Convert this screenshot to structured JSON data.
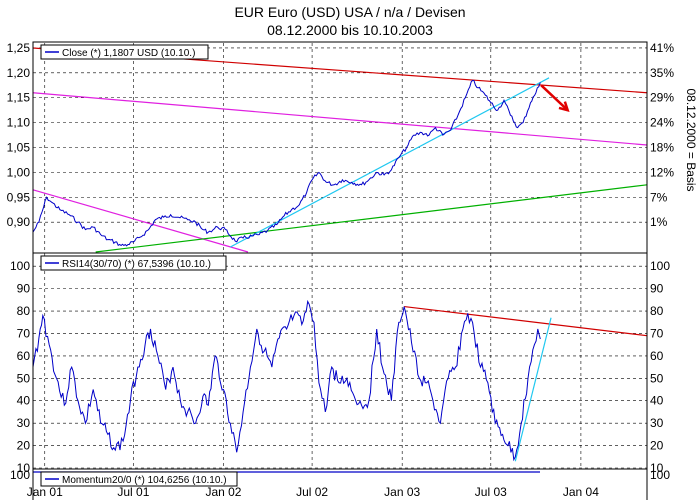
{
  "header": {
    "title_line1": "EUR Euro (USD) USA / n/a / Devisen",
    "title_line2": "08.12.2000 bis 10.10.2003"
  },
  "colors": {
    "price": "#0000c8",
    "trend_red": "#d00000",
    "channel_magenta": "#e020e0",
    "trend_cyan": "#20c8f0",
    "trend_green": "#00b000",
    "arrow": "#e00000",
    "grid": "#000000"
  },
  "chart_data": [
    {
      "type": "line",
      "panel": "price",
      "legend": "Close (*) 1,1807 USD (10.10.)",
      "right_axis_label": "08.12.2000 = Basis",
      "y_ticks": [
        "1,25",
        "1,20",
        "1,15",
        "1,10",
        "1,05",
        "1,00",
        "0,95",
        "0,90"
      ],
      "y_tick_values": [
        1.25,
        1.2,
        1.15,
        1.1,
        1.05,
        1.0,
        0.95,
        0.9
      ],
      "right_ticks": [
        "41%",
        "35%",
        "29%",
        "24%",
        "18%",
        "12%",
        "7%",
        "1%"
      ],
      "ylim": [
        0.84,
        1.26
      ],
      "x_ticks": [
        "Jan 01",
        "Jul 01",
        "Jan 02",
        "Jul 02",
        "Jan 03",
        "Jul 03",
        "Jan 04"
      ],
      "x_tick_dates": [
        "2001-01-01",
        "2001-07-01",
        "2002-01-01",
        "2002-07-01",
        "2003-01-01",
        "2003-07-01",
        "2004-01-01"
      ],
      "x_range": [
        "2000-12-08",
        "2004-05-15"
      ],
      "grid": true,
      "legend_position": "top-left",
      "series": [
        {
          "name": "Close (*) 1,1807 USD (10.10.)",
          "points": [
            [
              "2000-12-08",
              0.88
            ],
            [
              "2000-12-20",
              0.9
            ],
            [
              "2001-01-05",
              0.95
            ],
            [
              "2001-01-15",
              0.94
            ],
            [
              "2001-02-01",
              0.925
            ],
            [
              "2001-02-20",
              0.915
            ],
            [
              "2001-03-10",
              0.9
            ],
            [
              "2001-03-25",
              0.885
            ],
            [
              "2001-04-10",
              0.89
            ],
            [
              "2001-04-25",
              0.875
            ],
            [
              "2001-05-10",
              0.865
            ],
            [
              "2001-05-25",
              0.86
            ],
            [
              "2001-06-06",
              0.853
            ],
            [
              "2001-06-20",
              0.855
            ],
            [
              "2001-07-01",
              0.86
            ],
            [
              "2001-07-15",
              0.87
            ],
            [
              "2001-08-01",
              0.885
            ],
            [
              "2001-08-15",
              0.905
            ],
            [
              "2001-09-01",
              0.91
            ],
            [
              "2001-09-15",
              0.915
            ],
            [
              "2001-10-01",
              0.91
            ],
            [
              "2001-10-20",
              0.905
            ],
            [
              "2001-11-05",
              0.9
            ],
            [
              "2001-11-20",
              0.885
            ],
            [
              "2001-12-01",
              0.88
            ],
            [
              "2001-12-20",
              0.89
            ],
            [
              "2002-01-05",
              0.885
            ],
            [
              "2002-01-25",
              0.862
            ],
            [
              "2002-02-10",
              0.868
            ],
            [
              "2002-02-28",
              0.872
            ],
            [
              "2002-03-15",
              0.875
            ],
            [
              "2002-04-01",
              0.883
            ],
            [
              "2002-04-20",
              0.895
            ],
            [
              "2002-05-05",
              0.913
            ],
            [
              "2002-05-20",
              0.925
            ],
            [
              "2002-06-05",
              0.935
            ],
            [
              "2002-06-20",
              0.96
            ],
            [
              "2002-07-01",
              0.985
            ],
            [
              "2002-07-15",
              1.0
            ],
            [
              "2002-07-30",
              0.98
            ],
            [
              "2002-08-15",
              0.975
            ],
            [
              "2002-09-01",
              0.985
            ],
            [
              "2002-09-20",
              0.98
            ],
            [
              "2002-10-10",
              0.975
            ],
            [
              "2002-10-25",
              0.985
            ],
            [
              "2002-11-10",
              1.0
            ],
            [
              "2002-11-25",
              0.995
            ],
            [
              "2002-12-10",
              1.005
            ],
            [
              "2002-12-25",
              1.03
            ],
            [
              "2003-01-10",
              1.05
            ],
            [
              "2003-01-25",
              1.075
            ],
            [
              "2003-02-10",
              1.08
            ],
            [
              "2003-02-25",
              1.075
            ],
            [
              "2003-03-10",
              1.09
            ],
            [
              "2003-03-25",
              1.075
            ],
            [
              "2003-04-10",
              1.085
            ],
            [
              "2003-04-25",
              1.115
            ],
            [
              "2003-05-10",
              1.15
            ],
            [
              "2003-05-25",
              1.185
            ],
            [
              "2003-06-05",
              1.17
            ],
            [
              "2003-06-20",
              1.155
            ],
            [
              "2003-07-01",
              1.14
            ],
            [
              "2003-07-15",
              1.125
            ],
            [
              "2003-07-28",
              1.145
            ],
            [
              "2003-08-10",
              1.115
            ],
            [
              "2003-08-25",
              1.09
            ],
            [
              "2003-09-05",
              1.1
            ],
            [
              "2003-09-20",
              1.14
            ],
            [
              "2003-10-01",
              1.16
            ],
            [
              "2003-10-10",
              1.1807
            ]
          ]
        }
      ],
      "trendlines": [
        {
          "color_key": "trend_red",
          "from": [
            "2000-12-08",
            1.25
          ],
          "to": [
            "2004-05-15",
            1.16
          ]
        },
        {
          "color_key": "channel_magenta",
          "from": [
            "2000-12-08",
            1.16
          ],
          "to": [
            "2004-05-15",
            1.055
          ]
        },
        {
          "color_key": "channel_magenta",
          "from": [
            "2000-12-08",
            0.965
          ],
          "to": [
            "2002-02-20",
            0.84
          ]
        },
        {
          "color_key": "trend_green",
          "from": [
            "2001-04-15",
            0.84
          ],
          "to": [
            "2004-05-15",
            0.975
          ]
        },
        {
          "color_key": "trend_cyan",
          "from": [
            "2002-01-15",
            0.85
          ],
          "to": [
            "2003-10-28",
            1.19
          ]
        }
      ],
      "arrow": {
        "color_key": "arrow",
        "from": [
          "2003-10-12",
          1.175
        ],
        "to": [
          "2003-12-05",
          1.125
        ]
      }
    },
    {
      "type": "line",
      "panel": "rsi",
      "legend": "RSI14(30/70) (*) 67,5396 (10.10.)",
      "y_ticks": [
        "100",
        "90",
        "80",
        "70",
        "60",
        "50",
        "40",
        "30",
        "20",
        "10"
      ],
      "y_tick_values": [
        100,
        90,
        80,
        70,
        60,
        50,
        40,
        30,
        20,
        10
      ],
      "ylim": [
        10,
        105
      ],
      "grid": true,
      "legend_position": "top-left",
      "series": [
        {
          "name": "RSI14(30/70) (*) 67,5396 (10.10.)",
          "points": [
            [
              "2000-12-08",
              55
            ],
            [
              "2000-12-20",
              68
            ],
            [
              "2000-12-28",
              78
            ],
            [
              "2001-01-10",
              65
            ],
            [
              "2001-01-25",
              50
            ],
            [
              "2001-02-10",
              38
            ],
            [
              "2001-02-25",
              55
            ],
            [
              "2001-03-10",
              40
            ],
            [
              "2001-03-25",
              30
            ],
            [
              "2001-04-10",
              45
            ],
            [
              "2001-04-25",
              30
            ],
            [
              "2001-05-10",
              25
            ],
            [
              "2001-05-25",
              18
            ],
            [
              "2001-06-10",
              22
            ],
            [
              "2001-06-25",
              40
            ],
            [
              "2001-07-10",
              55
            ],
            [
              "2001-07-25",
              65
            ],
            [
              "2001-08-05",
              72
            ],
            [
              "2001-08-20",
              60
            ],
            [
              "2001-09-05",
              45
            ],
            [
              "2001-09-20",
              55
            ],
            [
              "2001-10-05",
              40
            ],
            [
              "2001-10-20",
              35
            ],
            [
              "2001-11-05",
              30
            ],
            [
              "2001-11-20",
              42
            ],
            [
              "2001-12-01",
              38
            ],
            [
              "2001-12-15",
              60
            ],
            [
              "2002-01-01",
              45
            ],
            [
              "2002-01-15",
              30
            ],
            [
              "2002-01-28",
              17
            ],
            [
              "2002-02-10",
              35
            ],
            [
              "2002-02-25",
              55
            ],
            [
              "2002-03-10",
              72
            ],
            [
              "2002-03-25",
              62
            ],
            [
              "2002-04-10",
              55
            ],
            [
              "2002-04-25",
              68
            ],
            [
              "2002-05-10",
              72
            ],
            [
              "2002-05-25",
              78
            ],
            [
              "2002-06-10",
              74
            ],
            [
              "2002-06-25",
              83
            ],
            [
              "2002-07-05",
              75
            ],
            [
              "2002-07-15",
              48
            ],
            [
              "2002-07-28",
              35
            ],
            [
              "2002-08-10",
              55
            ],
            [
              "2002-08-25",
              48
            ],
            [
              "2002-09-10",
              50
            ],
            [
              "2002-09-25",
              42
            ],
            [
              "2002-10-10",
              38
            ],
            [
              "2002-10-25",
              40
            ],
            [
              "2002-11-10",
              72
            ],
            [
              "2002-11-25",
              52
            ],
            [
              "2002-12-10",
              40
            ],
            [
              "2002-12-25",
              75
            ],
            [
              "2003-01-05",
              82
            ],
            [
              "2003-01-20",
              66
            ],
            [
              "2003-02-05",
              50
            ],
            [
              "2003-02-20",
              48
            ],
            [
              "2003-03-05",
              40
            ],
            [
              "2003-03-20",
              30
            ],
            [
              "2003-04-05",
              50
            ],
            [
              "2003-04-20",
              55
            ],
            [
              "2003-05-05",
              72
            ],
            [
              "2003-05-15",
              79
            ],
            [
              "2003-05-28",
              70
            ],
            [
              "2003-06-10",
              55
            ],
            [
              "2003-06-25",
              48
            ],
            [
              "2003-07-10",
              30
            ],
            [
              "2003-07-25",
              25
            ],
            [
              "2003-08-05",
              20
            ],
            [
              "2003-08-20",
              15
            ],
            [
              "2003-09-01",
              30
            ],
            [
              "2003-09-15",
              50
            ],
            [
              "2003-09-28",
              65
            ],
            [
              "2003-10-05",
              72
            ],
            [
              "2003-10-10",
              67.54
            ]
          ]
        }
      ],
      "trendlines": [
        {
          "color_key": "trend_red",
          "from": [
            "2003-01-05",
            82
          ],
          "to": [
            "2004-05-15",
            69
          ]
        },
        {
          "color_key": "trend_cyan",
          "from": [
            "2003-08-20",
            13
          ],
          "to": [
            "2003-11-01",
            77
          ]
        }
      ]
    },
    {
      "type": "line",
      "panel": "momentum",
      "legend": "Momentum20/0 (*) 104,6256 (10.10.)",
      "y_ticks": [
        "100"
      ],
      "y_tick_values": [
        100
      ],
      "grid": false,
      "legend_position": "top-left"
    }
  ]
}
